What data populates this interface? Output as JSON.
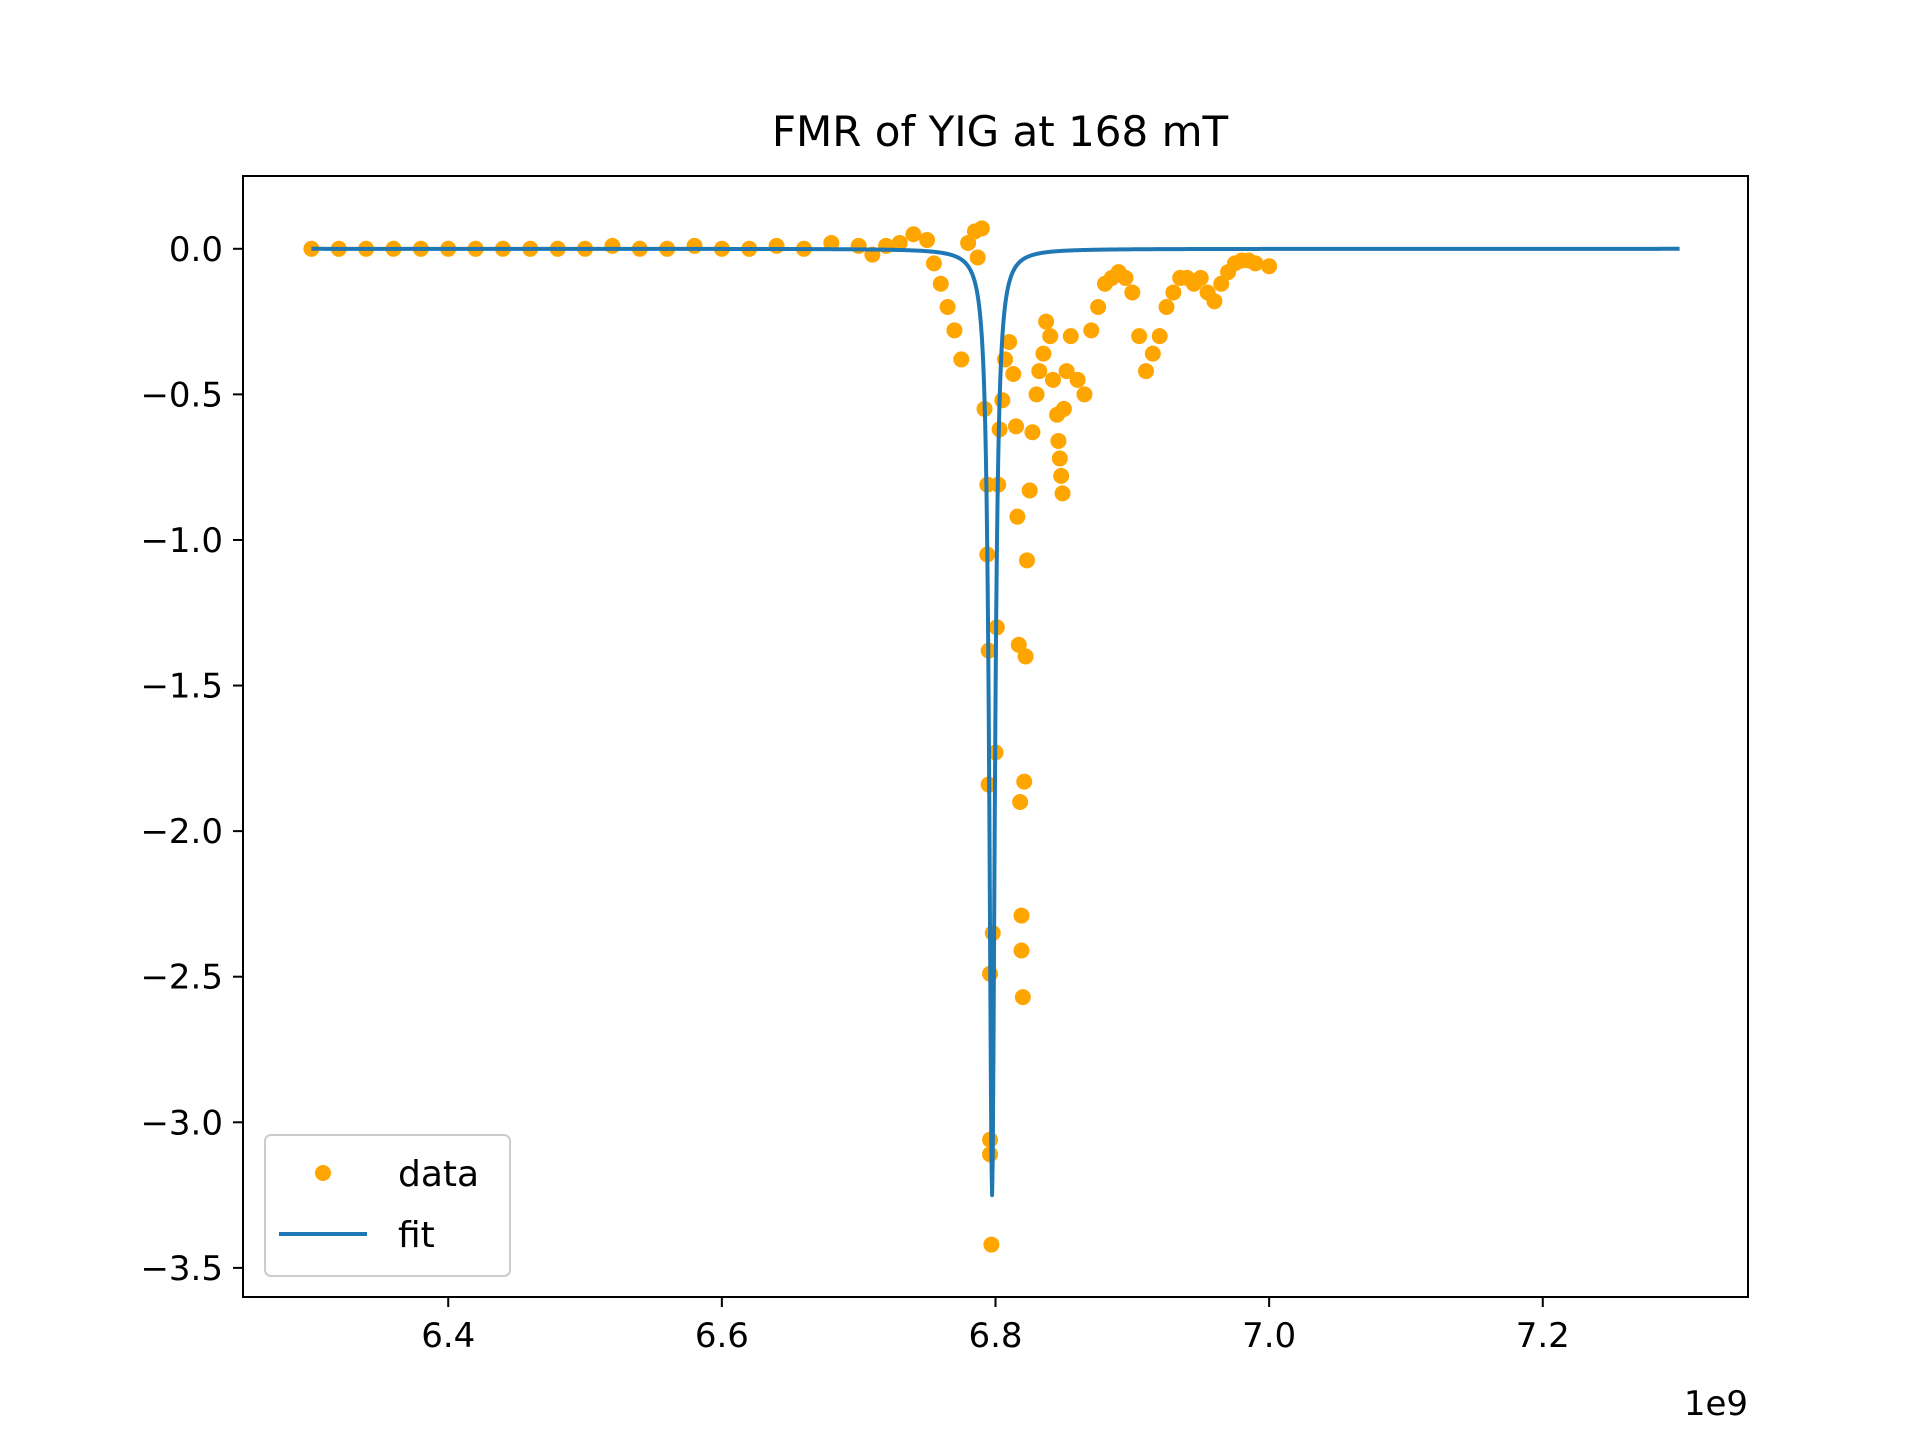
{
  "chart_data": {
    "type": "scatter",
    "title": "FMR of YIG at 168 mT",
    "xlabel": "",
    "ylabel": "",
    "x_offset_label": "1e9",
    "xlim": [
      6250000000.0,
      7350000000.0
    ],
    "ylim": [
      -3.6,
      0.25
    ],
    "x_ticks": [
      {
        "value": 6400000000.0,
        "label": "6.4"
      },
      {
        "value": 6600000000.0,
        "label": "6.6"
      },
      {
        "value": 6800000000.0,
        "label": "6.8"
      },
      {
        "value": 7000000000.0,
        "label": "7.0"
      },
      {
        "value": 7200000000.0,
        "label": "7.2"
      }
    ],
    "y_ticks": [
      {
        "value": 0.0,
        "label": "0.0"
      },
      {
        "value": -0.5,
        "label": "−0.5"
      },
      {
        "value": -1.0,
        "label": "−1.0"
      },
      {
        "value": -1.5,
        "label": "−1.5"
      },
      {
        "value": -2.0,
        "label": "−2.0"
      },
      {
        "value": -2.5,
        "label": "−2.5"
      },
      {
        "value": -3.0,
        "label": "−3.0"
      },
      {
        "value": -3.5,
        "label": "−3.5"
      }
    ],
    "grid": false,
    "legend_position": "lower left",
    "series": [
      {
        "name": "data",
        "kind": "scatter",
        "color": "#FFA500",
        "points": [
          [
            6300000000.0,
            0.0
          ],
          [
            6320000000.0,
            0.0
          ],
          [
            6340000000.0,
            0.0
          ],
          [
            6360000000.0,
            0.0
          ],
          [
            6380000000.0,
            0.0
          ],
          [
            6400000000.0,
            0.0
          ],
          [
            6420000000.0,
            0.0
          ],
          [
            6440000000.0,
            0.0
          ],
          [
            6460000000.0,
            0.0
          ],
          [
            6480000000.0,
            0.0
          ],
          [
            6500000000.0,
            0.0
          ],
          [
            6520000000.0,
            0.01
          ],
          [
            6540000000.0,
            0.0
          ],
          [
            6560000000.0,
            0.0
          ],
          [
            6580000000.0,
            0.01
          ],
          [
            6600000000.0,
            0.0
          ],
          [
            6620000000.0,
            0.0
          ],
          [
            6640000000.0,
            0.01
          ],
          [
            6660000000.0,
            0.0
          ],
          [
            6680000000.0,
            0.02
          ],
          [
            6700000000.0,
            0.01
          ],
          [
            6710000000.0,
            -0.02
          ],
          [
            6720000000.0,
            0.01
          ],
          [
            6730000000.0,
            0.02
          ],
          [
            6740000000.0,
            0.05
          ],
          [
            6750000000.0,
            0.03
          ],
          [
            6755000000.0,
            -0.05
          ],
          [
            6760000000.0,
            -0.12
          ],
          [
            6765000000.0,
            -0.2
          ],
          [
            6770000000.0,
            -0.28
          ],
          [
            6775000000.0,
            -0.38
          ],
          [
            6780000000.0,
            0.02
          ],
          [
            6785000000.0,
            0.06
          ],
          [
            6787000000.0,
            -0.03
          ],
          [
            6790000000.0,
            0.07
          ],
          [
            6792000000.0,
            -0.55
          ],
          [
            6794000000.0,
            -0.81
          ],
          [
            6794000000.0,
            -1.05
          ],
          [
            6795000000.0,
            -1.38
          ],
          [
            6795000000.0,
            -1.84
          ],
          [
            6796000000.0,
            -2.49
          ],
          [
            6796000000.0,
            -3.06
          ],
          [
            6796000000.0,
            -3.11
          ],
          [
            6797000000.0,
            -3.42
          ],
          [
            6798000000.0,
            -2.35
          ],
          [
            6800000000.0,
            -1.73
          ],
          [
            6801000000.0,
            -1.3
          ],
          [
            6802000000.0,
            -0.81
          ],
          [
            6803000000.0,
            -0.62
          ],
          [
            6805000000.0,
            -0.52
          ],
          [
            6807000000.0,
            -0.38
          ],
          [
            6810000000.0,
            -0.32
          ],
          [
            6813000000.0,
            -0.43
          ],
          [
            6815000000.0,
            -0.61
          ],
          [
            6816000000.0,
            -0.92
          ],
          [
            6817000000.0,
            -1.36
          ],
          [
            6818000000.0,
            -1.9
          ],
          [
            6819000000.0,
            -2.29
          ],
          [
            6819000000.0,
            -2.41
          ],
          [
            6820000000.0,
            -2.57
          ],
          [
            6821000000.0,
            -1.83
          ],
          [
            6822000000.0,
            -1.4
          ],
          [
            6823000000.0,
            -1.07
          ],
          [
            6825000000.0,
            -0.83
          ],
          [
            6827000000.0,
            -0.63
          ],
          [
            6830000000.0,
            -0.5
          ],
          [
            6832000000.0,
            -0.42
          ],
          [
            6835000000.0,
            -0.36
          ],
          [
            6837000000.0,
            -0.25
          ],
          [
            6840000000.0,
            -0.3
          ],
          [
            6842000000.0,
            -0.45
          ],
          [
            6845000000.0,
            -0.57
          ],
          [
            6846000000.0,
            -0.66
          ],
          [
            6847000000.0,
            -0.72
          ],
          [
            6848000000.0,
            -0.78
          ],
          [
            6849000000.0,
            -0.84
          ],
          [
            6850000000.0,
            -0.55
          ],
          [
            6852000000.0,
            -0.42
          ],
          [
            6855000000.0,
            -0.3
          ],
          [
            6860000000.0,
            -0.45
          ],
          [
            6865000000.0,
            -0.5
          ],
          [
            6870000000.0,
            -0.28
          ],
          [
            6875000000.0,
            -0.2
          ],
          [
            6880000000.0,
            -0.12
          ],
          [
            6885000000.0,
            -0.1
          ],
          [
            6890000000.0,
            -0.08
          ],
          [
            6895000000.0,
            -0.1
          ],
          [
            6900000000.0,
            -0.15
          ],
          [
            6905000000.0,
            -0.3
          ],
          [
            6910000000.0,
            -0.42
          ],
          [
            6915000000.0,
            -0.36
          ],
          [
            6920000000.0,
            -0.3
          ],
          [
            6925000000.0,
            -0.2
          ],
          [
            6930000000.0,
            -0.15
          ],
          [
            6935000000.0,
            -0.1
          ],
          [
            6940000000.0,
            -0.1
          ],
          [
            6945000000.0,
            -0.12
          ],
          [
            6950000000.0,
            -0.1
          ],
          [
            6955000000.0,
            -0.15
          ],
          [
            6960000000.0,
            -0.18
          ],
          [
            6965000000.0,
            -0.12
          ],
          [
            6970000000.0,
            -0.08
          ],
          [
            6975000000.0,
            -0.05
          ],
          [
            6980000000.0,
            -0.04
          ],
          [
            6985000000.0,
            -0.04
          ],
          [
            6990000000.0,
            -0.05
          ],
          [
            7000000000.0,
            -0.06
          ]
        ]
      },
      {
        "name": "fit",
        "kind": "line",
        "color": "#1F77B4",
        "model": "lorentzian",
        "x_start": 6300000000.0,
        "x_end": 7300000000.0,
        "center": 6797500000.0,
        "amplitude": -3.25,
        "half_width": 2400000.0
      }
    ]
  }
}
